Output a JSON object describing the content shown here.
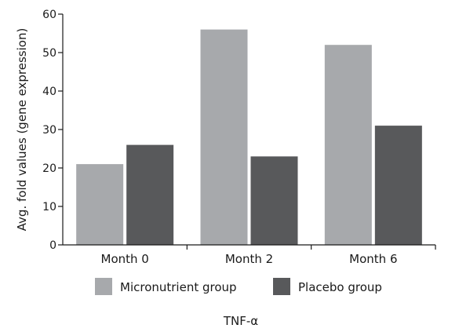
{
  "chart_data": {
    "type": "bar",
    "title": "",
    "xlabel": "TNF-α",
    "ylabel": "Avg. fold values (gene expression)",
    "ylim": [
      0,
      60
    ],
    "yticks": [
      "0",
      "10",
      "20",
      "30",
      "40",
      "50",
      "60"
    ],
    "categories": [
      "Month 0",
      "Month 2",
      "Month 6"
    ],
    "series": [
      {
        "name": "Micronutrient group",
        "color": "#a7a9ac",
        "values": [
          21,
          56,
          52
        ]
      },
      {
        "name": "Placebo group",
        "color": "#58595b",
        "values": [
          26,
          23,
          31
        ]
      }
    ],
    "legend_position": "bottom",
    "grid": false
  }
}
